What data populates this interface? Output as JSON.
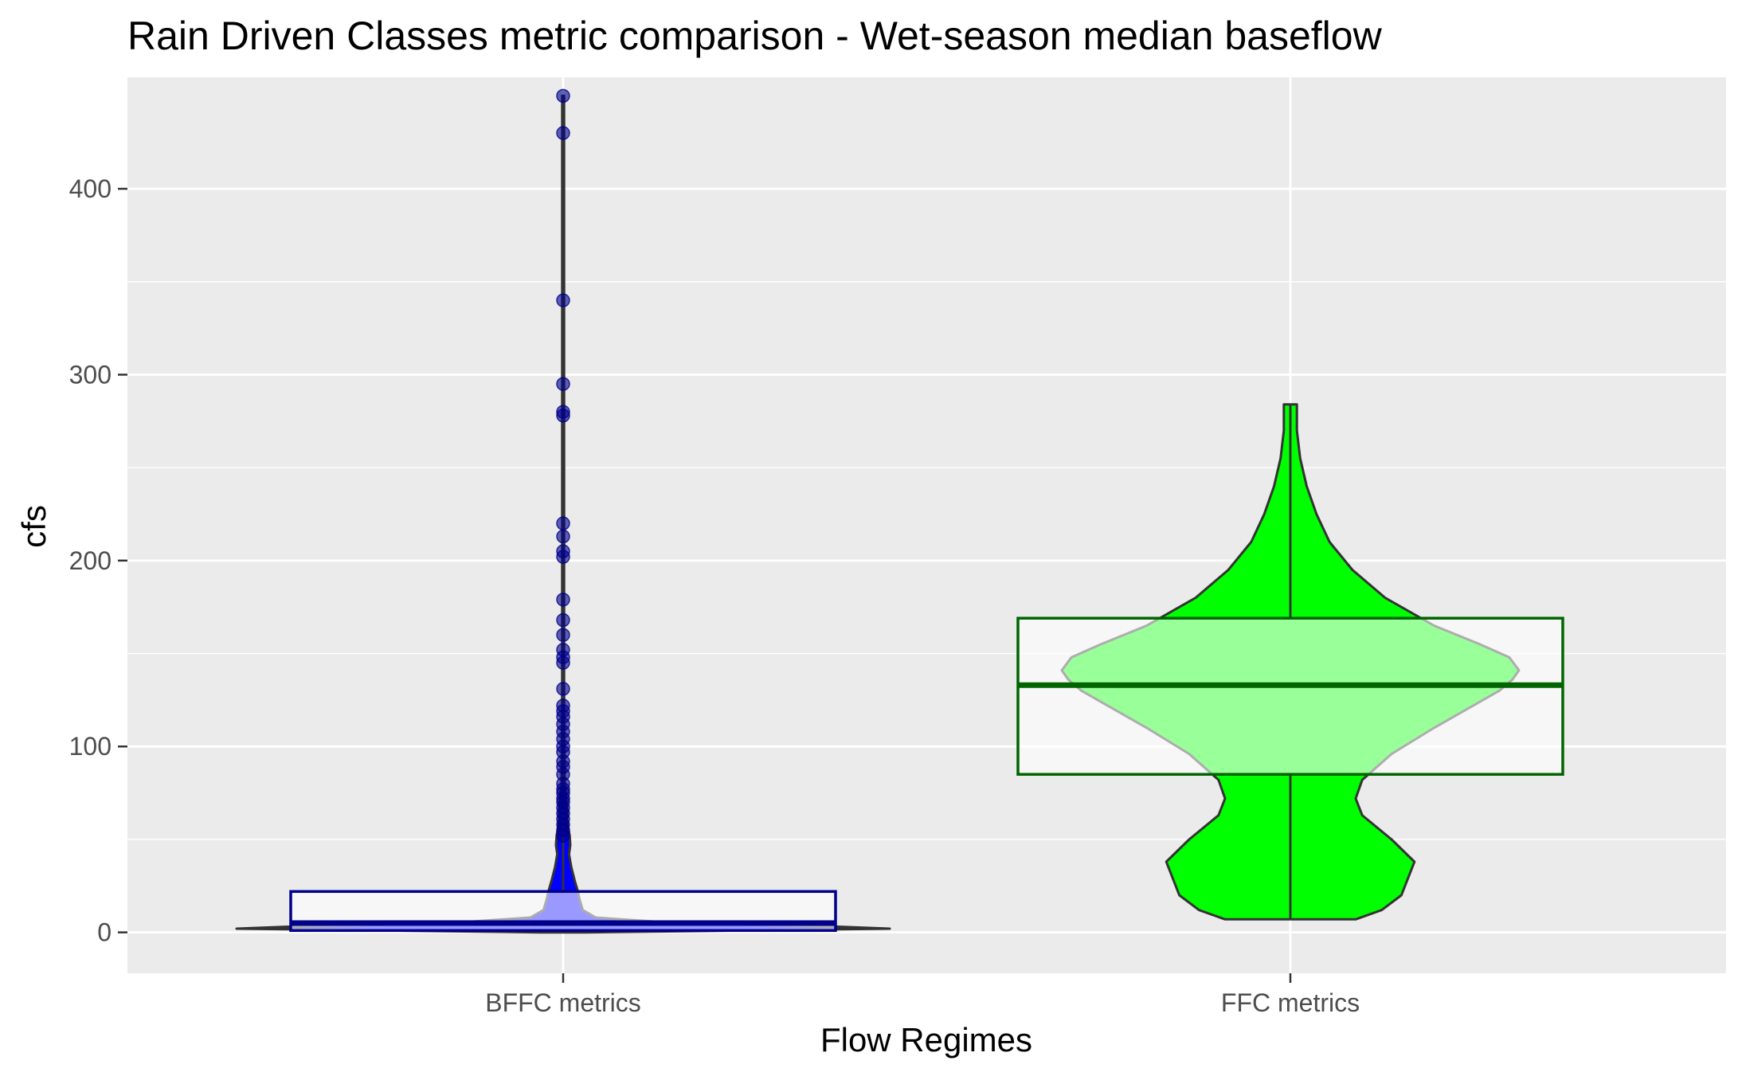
{
  "chart_data": {
    "type": "violin",
    "title": "Rain Driven Classes metric comparison - Wet-season median baseflow",
    "xlabel": "Flow Regimes",
    "ylabel": "cfs",
    "categories": [
      "BFFC metrics",
      "FFC metrics"
    ],
    "ylim": [
      -22,
      460
    ],
    "y_ticks": [
      0,
      100,
      200,
      300,
      400
    ],
    "grid": true,
    "colors": {
      "panel": "#ebebeb",
      "grid": "#ffffff",
      "bffc_fill": "#0000ff",
      "ffc_fill": "#00ff00",
      "bffc_box_border": "#00008b",
      "ffc_box_border": "#006400",
      "outline": "#333333"
    },
    "series": [
      {
        "name": "BFFC metrics",
        "box": {
          "min": 0,
          "q1": 1,
          "median": 5,
          "q3": 22,
          "max": 450
        },
        "violin_profile": [
          [
            0,
            0.07
          ],
          [
            1,
            0.55
          ],
          [
            2,
            1.0
          ],
          [
            3,
            0.85
          ],
          [
            5,
            0.35
          ],
          [
            8,
            0.1
          ],
          [
            12,
            0.06
          ],
          [
            18,
            0.05
          ],
          [
            22,
            0.045
          ],
          [
            28,
            0.035
          ],
          [
            35,
            0.025
          ],
          [
            42,
            0.018
          ],
          [
            47,
            0.022
          ],
          [
            52,
            0.02
          ],
          [
            60,
            0.012
          ],
          [
            65,
            0.013
          ],
          [
            70,
            0.01
          ],
          [
            80,
            0.005
          ],
          [
            100,
            0.004
          ],
          [
            130,
            0.003
          ],
          [
            200,
            0.003
          ],
          [
            300,
            0.003
          ],
          [
            450,
            0.003
          ]
        ],
        "outliers": [
          450,
          430,
          340,
          295,
          280,
          278,
          220,
          213,
          205,
          202,
          179,
          168,
          160,
          152,
          148,
          145,
          131,
          122,
          119,
          116,
          112,
          108,
          104,
          100,
          97,
          92,
          89,
          85,
          80,
          77,
          75,
          72,
          70,
          67,
          64,
          61,
          58,
          55,
          52
        ]
      },
      {
        "name": "FFC metrics",
        "box": {
          "min": 7,
          "q1": 85,
          "median": 133,
          "q3": 169,
          "max": 284
        },
        "violin_profile": [
          [
            7,
            0.2
          ],
          [
            12,
            0.28
          ],
          [
            20,
            0.34
          ],
          [
            38,
            0.38
          ],
          [
            50,
            0.31
          ],
          [
            63,
            0.22
          ],
          [
            72,
            0.2
          ],
          [
            82,
            0.22
          ],
          [
            96,
            0.31
          ],
          [
            110,
            0.44
          ],
          [
            122,
            0.56
          ],
          [
            130,
            0.64
          ],
          [
            136,
            0.68
          ],
          [
            141,
            0.7
          ],
          [
            148,
            0.67
          ],
          [
            155,
            0.58
          ],
          [
            165,
            0.44
          ],
          [
            180,
            0.29
          ],
          [
            195,
            0.19
          ],
          [
            210,
            0.12
          ],
          [
            225,
            0.08
          ],
          [
            240,
            0.05
          ],
          [
            255,
            0.03
          ],
          [
            270,
            0.02
          ],
          [
            284,
            0.02
          ]
        ]
      }
    ]
  }
}
